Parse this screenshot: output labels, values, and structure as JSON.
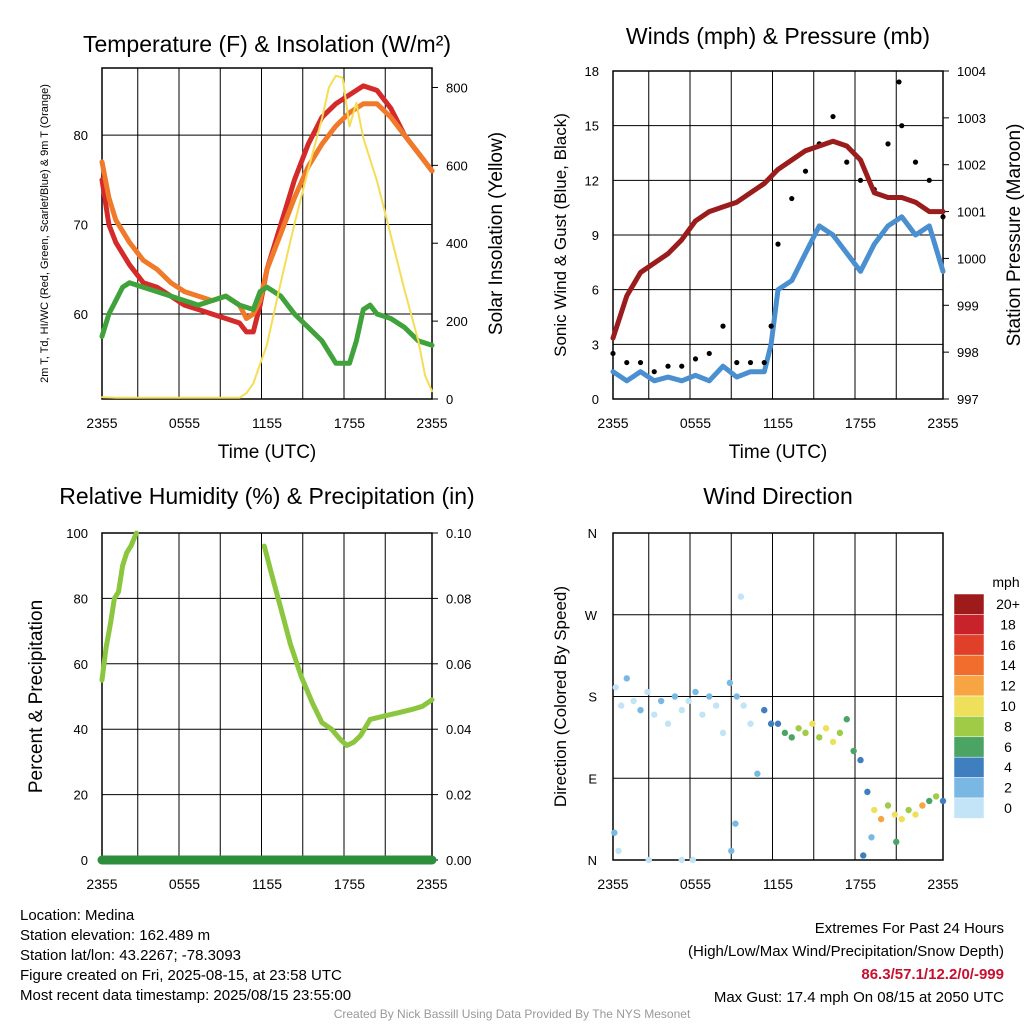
{
  "x_tick_labels": [
    "2355",
    "0555",
    "1155",
    "1755",
    "2355"
  ],
  "chart_data": [
    {
      "type": "line",
      "title": "Temperature (F) & Insolation (W/m²)",
      "xlabel": "Time (UTC)",
      "ylabel": "2m T, Td, HI/WC (Red, Green, Scarlet/Blue) & 9m T (Orange)",
      "ylabel_right": "Solar Insolation (Yellow)",
      "x_hours_range": [
        0,
        24
      ],
      "ylim": [
        50.5,
        87.5
      ],
      "y_ticks": [
        60,
        70,
        80
      ],
      "ylim_right": [
        0,
        850
      ],
      "y_ticks_right": [
        0,
        200,
        400,
        600,
        800
      ],
      "grid": true,
      "series": [
        {
          "name": "2m T",
          "axis": "left",
          "color": "#d42a2a",
          "x": [
            0,
            0.5,
            1,
            2,
            3,
            4,
            5,
            6,
            7,
            8,
            9,
            10,
            10.5,
            11,
            11.5,
            12,
            13,
            14,
            15,
            16,
            17,
            18,
            19,
            20,
            21,
            22,
            23,
            24
          ],
          "y": [
            75,
            70,
            68,
            65.5,
            63.5,
            63,
            62,
            61,
            60.5,
            60,
            59.5,
            59,
            58,
            58,
            61,
            65,
            70,
            75,
            79,
            82,
            83.5,
            84.5,
            85.5,
            85,
            83,
            80,
            78,
            76
          ]
        },
        {
          "name": "9m T",
          "axis": "left",
          "color": "#f07a2a",
          "x": [
            0,
            0.5,
            1,
            2,
            3,
            4,
            5,
            6,
            7,
            8,
            9,
            10,
            10.5,
            11,
            11.5,
            12,
            13,
            14,
            15,
            16,
            17,
            18,
            19,
            20,
            21,
            22,
            23,
            24
          ],
          "y": [
            77,
            73,
            70.5,
            68,
            66,
            65,
            63.5,
            62.5,
            62,
            61.5,
            62,
            61,
            59.5,
            60,
            61.5,
            65,
            69,
            73,
            76.5,
            79,
            81,
            82.5,
            83.5,
            83.5,
            82,
            80,
            78,
            76
          ]
        },
        {
          "name": "Td",
          "axis": "left",
          "color": "#3fa23a",
          "x": [
            0,
            0.5,
            1,
            1.5,
            2,
            3,
            4,
            5,
            6,
            7,
            8,
            9,
            10,
            11,
            11.5,
            12,
            13,
            14,
            15,
            16,
            17,
            18,
            18.5,
            19,
            19.5,
            20,
            21,
            22,
            23,
            24
          ],
          "y": [
            57.5,
            60,
            61.5,
            63,
            63.5,
            63,
            62.5,
            62,
            61.5,
            61,
            61.5,
            62,
            61,
            60.5,
            62.5,
            63,
            62,
            60,
            58.5,
            57,
            54.5,
            54.5,
            57,
            60.5,
            61,
            60,
            59.5,
            58.5,
            57,
            56.5
          ]
        },
        {
          "name": "Solar Insolation",
          "axis": "right",
          "color": "#f5dd55",
          "x": [
            0,
            1,
            3,
            5,
            7,
            9,
            10,
            10.5,
            11,
            12,
            13,
            14,
            15,
            16,
            16.5,
            17,
            17.5,
            18,
            18.5,
            19,
            20,
            21,
            22,
            23,
            23.5,
            24
          ],
          "y": [
            5,
            3,
            3,
            3,
            3,
            3,
            3,
            15,
            40,
            140,
            300,
            450,
            590,
            720,
            800,
            830,
            825,
            700,
            760,
            670,
            560,
            420,
            280,
            150,
            60,
            20
          ]
        }
      ]
    },
    {
      "type": "line",
      "title": "Winds (mph) & Pressure (mb)",
      "xlabel": "Time (UTC)",
      "ylabel": "Sonic Wind & Gust (Blue, Black)",
      "ylabel_right": "Station Pressure (Maroon)",
      "x_hours_range": [
        0,
        24
      ],
      "ylim": [
        0,
        18
      ],
      "y_ticks": [
        0,
        3,
        6,
        9,
        12,
        15,
        18
      ],
      "ylim_right": [
        997,
        1004
      ],
      "y_ticks_right": [
        997,
        998,
        999,
        1000,
        1001,
        1002,
        1003,
        1004
      ],
      "grid": true,
      "series": [
        {
          "name": "Sonic Wind",
          "axis": "left",
          "color": "#4a90d0",
          "x": [
            0,
            1,
            2,
            3,
            4,
            5,
            6,
            7,
            8,
            9,
            10,
            11,
            11.5,
            12,
            13,
            14,
            15,
            16,
            17,
            18,
            19,
            20,
            21,
            22,
            23,
            24
          ],
          "y": [
            1.5,
            1,
            1.5,
            1,
            1.2,
            1,
            1.3,
            1,
            1.8,
            1.2,
            1.5,
            1.5,
            3,
            6,
            6.5,
            8,
            9.5,
            9,
            8,
            7,
            8.5,
            9.5,
            10,
            9,
            9.5,
            7
          ]
        },
        {
          "name": "Gust",
          "axis": "left",
          "color": "#000000",
          "x": [
            0,
            1,
            2,
            3,
            4,
            5,
            6,
            7,
            8,
            9,
            10,
            11,
            11.5,
            12,
            13,
            14,
            15,
            16,
            17,
            18,
            19,
            20,
            20.8,
            21,
            22,
            23,
            24
          ],
          "y": [
            2.5,
            2,
            2,
            1.5,
            1.8,
            1.8,
            2.2,
            2.5,
            4,
            2,
            2,
            2,
            4,
            8.5,
            11,
            12.5,
            14,
            15.5,
            13,
            12,
            11.5,
            14,
            17.4,
            15,
            13,
            12,
            10
          ]
        },
        {
          "name": "Station Pressure",
          "axis": "right",
          "color": "#9b1c1c",
          "x": [
            0,
            1,
            2,
            3,
            4,
            5,
            6,
            7,
            8,
            9,
            10,
            11,
            12,
            13,
            14,
            15,
            16,
            17,
            18,
            19,
            20,
            21,
            22,
            23,
            24
          ],
          "y": [
            998.3,
            999.2,
            999.7,
            999.9,
            1000.1,
            1000.4,
            1000.8,
            1001.0,
            1001.1,
            1001.2,
            1001.4,
            1001.6,
            1001.9,
            1002.1,
            1002.3,
            1002.4,
            1002.5,
            1002.4,
            1002.1,
            1001.4,
            1001.3,
            1001.3,
            1001.2,
            1001.0,
            1001.0
          ]
        }
      ]
    },
    {
      "type": "line",
      "title": "Relative Humidity (%) & Precipitation (in)",
      "xlabel": "",
      "ylabel": "Percent & Precipitation",
      "x_hours_range": [
        0,
        24
      ],
      "ylim": [
        0,
        100
      ],
      "y_ticks": [
        0,
        20,
        40,
        60,
        80,
        100
      ],
      "ylim_right": [
        0,
        0.1
      ],
      "y_ticks_right": [
        "0.00",
        "0.02",
        "0.04",
        "0.06",
        "0.08",
        "0.10"
      ],
      "grid": true,
      "series": [
        {
          "name": "Relative Humidity",
          "axis": "left",
          "color": "#8cc63e",
          "x": [
            0,
            0.3,
            0.6,
            0.9,
            1.2,
            1.5,
            1.8,
            2.1,
            2.5
          ],
          "y": [
            55,
            65,
            72,
            80,
            82,
            90,
            94,
            96,
            100
          ]
        },
        {
          "name": "Relative Humidity (cont.)",
          "axis": "left",
          "color": "#8cc63e",
          "x": [
            11.8,
            12.3,
            13,
            13.7,
            14.5,
            15.3,
            16,
            16.7,
            17.3,
            17.8,
            18.3,
            18.8,
            19.5,
            20.5,
            21.5,
            22.5,
            23.3,
            24
          ],
          "y": [
            96,
            88,
            77,
            66,
            56,
            48,
            42,
            40,
            37,
            35,
            36,
            38,
            43,
            44,
            45,
            46,
            47,
            49
          ]
        },
        {
          "name": "Precipitation",
          "axis": "right",
          "color": "#2d8f3c",
          "x": [
            0,
            24
          ],
          "y": [
            0,
            0
          ]
        }
      ]
    },
    {
      "type": "scatter",
      "title": "Wind Direction",
      "xlabel": "",
      "ylabel": "Direction (Colored By Speed)",
      "x_hours_range": [
        0,
        24
      ],
      "ylim": [
        0,
        360
      ],
      "y_ticks": [
        "N",
        "E",
        "S",
        "W",
        "N"
      ],
      "grid": true,
      "legend_title": "mph",
      "legend_labels": [
        "20+",
        "18",
        "16",
        "14",
        "12",
        "10",
        "8",
        "6",
        "4",
        "2",
        "0"
      ],
      "legend_colors": [
        "#9e1b1b",
        "#c8232b",
        "#e0402a",
        "#f06d2d",
        "#f7a443",
        "#eee05a",
        "#9fcb46",
        "#4aa565",
        "#3f7fc0",
        "#7ab8e4",
        "#c3e3f6"
      ],
      "points": [
        {
          "x": 0.2,
          "y": 190,
          "speed": 1
        },
        {
          "x": 0.6,
          "y": 170,
          "speed": 1
        },
        {
          "x": 1.0,
          "y": 200,
          "speed": 2
        },
        {
          "x": 1.5,
          "y": 175,
          "speed": 1
        },
        {
          "x": 2.0,
          "y": 165,
          "speed": 2
        },
        {
          "x": 2.5,
          "y": 185,
          "speed": 1
        },
        {
          "x": 3.0,
          "y": 160,
          "speed": 1
        },
        {
          "x": 3.5,
          "y": 175,
          "speed": 2
        },
        {
          "x": 4.0,
          "y": 150,
          "speed": 1
        },
        {
          "x": 4.5,
          "y": 180,
          "speed": 2
        },
        {
          "x": 5.0,
          "y": 165,
          "speed": 1
        },
        {
          "x": 5.5,
          "y": 175,
          "speed": 1
        },
        {
          "x": 6.0,
          "y": 185,
          "speed": 2
        },
        {
          "x": 6.5,
          "y": 160,
          "speed": 1
        },
        {
          "x": 7.0,
          "y": 180,
          "speed": 2
        },
        {
          "x": 7.5,
          "y": 170,
          "speed": 1
        },
        {
          "x": 8.0,
          "y": 140,
          "speed": 1
        },
        {
          "x": 8.5,
          "y": 195,
          "speed": 2
        },
        {
          "x": 9.0,
          "y": 180,
          "speed": 2
        },
        {
          "x": 9.5,
          "y": 170,
          "speed": 1
        },
        {
          "x": 10.0,
          "y": 150,
          "speed": 1
        },
        {
          "x": 0.1,
          "y": 30,
          "speed": 3
        },
        {
          "x": 0.4,
          "y": 10,
          "speed": 1
        },
        {
          "x": 2.6,
          "y": 0,
          "speed": 1
        },
        {
          "x": 5.0,
          "y": 0,
          "speed": 1
        },
        {
          "x": 5.8,
          "y": 0,
          "speed": 1
        },
        {
          "x": 8.6,
          "y": 10,
          "speed": 2
        },
        {
          "x": 8.9,
          "y": 40,
          "speed": 3
        },
        {
          "x": 9.3,
          "y": 290,
          "speed": 1
        },
        {
          "x": 10.5,
          "y": 95,
          "speed": 2
        },
        {
          "x": 11.0,
          "y": 165,
          "speed": 4
        },
        {
          "x": 11.5,
          "y": 150,
          "speed": 5
        },
        {
          "x": 12.0,
          "y": 150,
          "speed": 4
        },
        {
          "x": 12.5,
          "y": 140,
          "speed": 6
        },
        {
          "x": 13.0,
          "y": 135,
          "speed": 7
        },
        {
          "x": 13.5,
          "y": 145,
          "speed": 9
        },
        {
          "x": 14.0,
          "y": 140,
          "speed": 8
        },
        {
          "x": 14.5,
          "y": 150,
          "speed": 10
        },
        {
          "x": 15.0,
          "y": 135,
          "speed": 9
        },
        {
          "x": 15.5,
          "y": 145,
          "speed": 11
        },
        {
          "x": 16.0,
          "y": 130,
          "speed": 10
        },
        {
          "x": 16.5,
          "y": 140,
          "speed": 8
        },
        {
          "x": 17.0,
          "y": 155,
          "speed": 6
        },
        {
          "x": 17.5,
          "y": 120,
          "speed": 7
        },
        {
          "x": 18.0,
          "y": 110,
          "speed": 4
        },
        {
          "x": 18.5,
          "y": 75,
          "speed": 5
        },
        {
          "x": 19.0,
          "y": 55,
          "speed": 10
        },
        {
          "x": 19.5,
          "y": 45,
          "speed": 12
        },
        {
          "x": 20.0,
          "y": 60,
          "speed": 8
        },
        {
          "x": 20.5,
          "y": 50,
          "speed": 11
        },
        {
          "x": 21.0,
          "y": 45,
          "speed": 10
        },
        {
          "x": 21.5,
          "y": 55,
          "speed": 9
        },
        {
          "x": 22.0,
          "y": 50,
          "speed": 10
        },
        {
          "x": 22.5,
          "y": 60,
          "speed": 12
        },
        {
          "x": 23.0,
          "y": 65,
          "speed": 7
        },
        {
          "x": 23.5,
          "y": 70,
          "speed": 9
        },
        {
          "x": 24.0,
          "y": 65,
          "speed": 4
        },
        {
          "x": 18.2,
          "y": 5,
          "speed": 5
        },
        {
          "x": 18.8,
          "y": 25,
          "speed": 3
        },
        {
          "x": 20.6,
          "y": 20,
          "speed": 7
        }
      ]
    }
  ],
  "footer": {
    "location": "Location: Medina",
    "elevation": "Station elevation: 162.489 m",
    "latlon": "Station lat/lon: 43.2267; -78.3093",
    "created": "Figure created on Fri, 2025-08-15, at 23:58 UTC",
    "recent": "Most recent data timestamp: 2025/08/15 23:55:00",
    "extremes_title": "Extremes For Past 24 Hours",
    "extremes_subtitle": "(High/Low/Max Wind/Precipitation/Snow Depth)",
    "extremes_values": "86.3/57.1/12.2/0/-999",
    "max_gust": "Max Gust: 17.4 mph On 08/15 at 2050 UTC",
    "credit": "Created By Nick Bassill Using Data Provided By The NYS Mesonet"
  }
}
